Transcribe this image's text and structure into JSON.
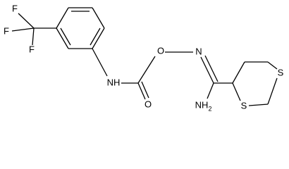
{
  "atoms": [
    {
      "label": "F"
    },
    {
      "label": "F"
    },
    {
      "label": "F"
    },
    {
      "label": "NH"
    },
    {
      "label": "O"
    },
    {
      "label": "O"
    },
    {
      "label": "N"
    },
    {
      "label": "NH",
      "subscript": "2"
    },
    {
      "label": "S"
    },
    {
      "label": "S"
    }
  ]
}
